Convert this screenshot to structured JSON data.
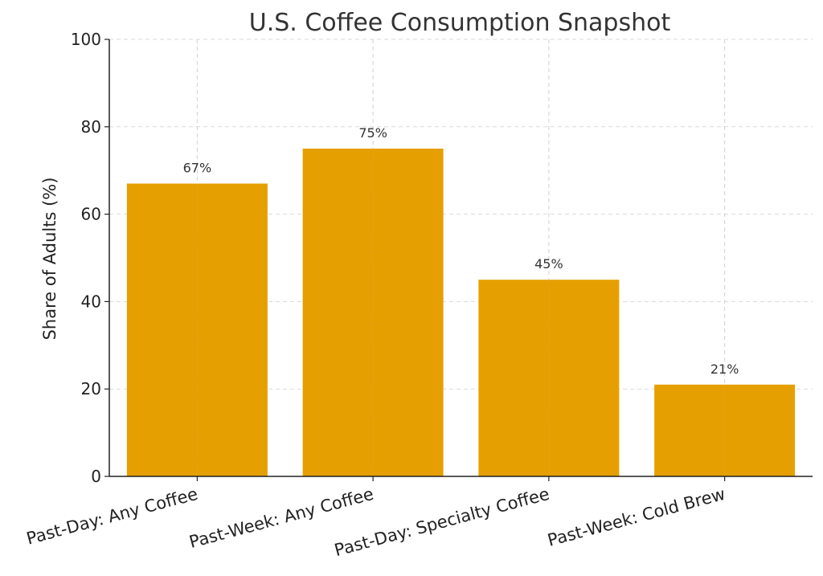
{
  "chart_data": {
    "type": "bar",
    "title": "U.S. Coffee Consumption Snapshot",
    "xlabel": "",
    "ylabel": "Share of Adults (%)",
    "categories": [
      "Past-Day: Any Coffee",
      "Past-Week: Any Coffee",
      "Past-Day: Specialty Coffee",
      "Past-Week: Cold Brew"
    ],
    "values": [
      67,
      75,
      45,
      21
    ],
    "data_labels": [
      "67%",
      "75%",
      "45%",
      "21%"
    ],
    "ylim": [
      0,
      100
    ],
    "yticks": [
      "0",
      "20",
      "40",
      "60",
      "80",
      "100"
    ],
    "grid": true,
    "bar_color": "#E69F00"
  }
}
